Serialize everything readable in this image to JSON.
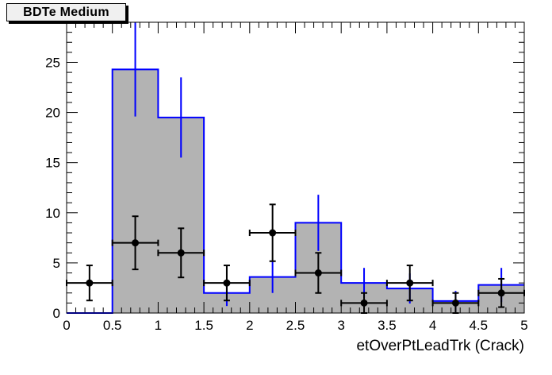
{
  "title": "BDTe Medium",
  "colors": {
    "background": "#ffffff",
    "frame_line": "#000000",
    "hist_fill": "#b3b3b3",
    "hist_outline": "#000000",
    "mc_line": "#0000ff",
    "data_marker": "#000000",
    "text": "#000000",
    "title_box_fill": "#f0f0f0",
    "title_box_border": "#000000",
    "title_box_shadow": "#000000"
  },
  "chart_data": {
    "type": "bar",
    "subtype": "root-histogram-with-data-points",
    "title": "BDTe Medium",
    "xlabel": "etOverPtLeadTrk (Crack)",
    "ylabel": "",
    "xlim": [
      0,
      5
    ],
    "ylim": [
      0,
      29
    ],
    "grid": false,
    "legend": null,
    "bin_edges": [
      0,
      0.5,
      1,
      1.5,
      2,
      2.5,
      3,
      3.5,
      4,
      4.5,
      5
    ],
    "x_tick_labels": [
      "0",
      "0.5",
      "1",
      "1.5",
      "2",
      "2.5",
      "3",
      "3.5",
      "4",
      "4.5",
      "5"
    ],
    "x_tick_values": [
      0,
      0.5,
      1,
      1.5,
      2,
      2.5,
      3,
      3.5,
      4,
      4.5,
      5
    ],
    "y_tick_labels": [
      "0",
      "5",
      "10",
      "15",
      "20",
      "25"
    ],
    "y_tick_values": [
      0,
      5,
      10,
      15,
      20,
      25
    ],
    "x_minor_step": 0.1,
    "y_minor_step": 1,
    "series": [
      {
        "name": "mc-histogram",
        "kind": "filled-step-histogram-with-errors",
        "line_color": "#0000ff",
        "fill_color": "#b3b3b3",
        "values": [
          0,
          24.3,
          19.5,
          2.0,
          3.6,
          9.0,
          3.0,
          2.45,
          1.2,
          2.8
        ],
        "errors": [
          0,
          4.7,
          4.0,
          1.3,
          1.6,
          2.8,
          1.5,
          1.5,
          1.0,
          1.7
        ]
      },
      {
        "name": "data-points",
        "kind": "points-with-error-bars",
        "color": "#000000",
        "x": [
          0.25,
          0.75,
          1.25,
          1.75,
          2.25,
          2.75,
          3.25,
          3.75,
          4.25,
          4.75
        ],
        "y": [
          3,
          7,
          6,
          3,
          8,
          4,
          1,
          3,
          1,
          2
        ],
        "yerr": [
          1.75,
          2.65,
          2.45,
          1.75,
          2.83,
          2.0,
          1.0,
          1.75,
          1.0,
          1.41
        ],
        "xerr": 0.25
      }
    ]
  }
}
